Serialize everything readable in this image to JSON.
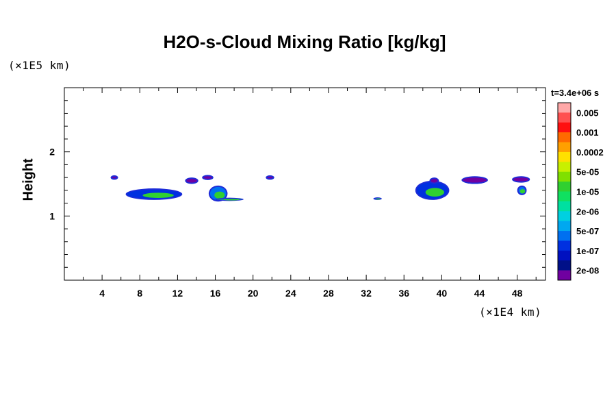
{
  "chart_data": {
    "type": "heatmap",
    "title": "H2O-s-Cloud Mixing Ratio [kg/kg]",
    "ylabel": "Height",
    "xlabel": "",
    "x_unit_label": "(×1E4 km)",
    "y_unit_label": "(×1E5 km)",
    "xlim": [
      0,
      51
    ],
    "ylim": [
      0,
      3
    ],
    "x_ticks": [
      "4",
      "8",
      "12",
      "16",
      "20",
      "24",
      "28",
      "32",
      "36",
      "40",
      "44",
      "48"
    ],
    "x_tick_values": [
      4,
      8,
      12,
      16,
      20,
      24,
      28,
      32,
      36,
      40,
      44,
      48
    ],
    "y_ticks": [
      "1",
      "2"
    ],
    "y_tick_values": [
      1,
      2
    ],
    "colorbar": {
      "title": "t=3.4e+06 s",
      "labels": [
        "0.005",
        "0.001",
        "0.0002",
        "5e-05",
        "1e-05",
        "2e-06",
        "5e-07",
        "1e-07",
        "2e-08"
      ],
      "colors": [
        "#ffa8a8",
        "#ff5050",
        "#ff1010",
        "#ff6a00",
        "#ffa000",
        "#ffe000",
        "#c8f000",
        "#80e000",
        "#30d030",
        "#10e060",
        "#00e0a0",
        "#00d0e0",
        "#00a8f0",
        "#0070f0",
        "#0030e0",
        "#0010c0",
        "#001088",
        "#7000a0"
      ]
    },
    "features": [
      {
        "x": 5.3,
        "y": 1.6,
        "w": 0.8,
        "h": 0.07,
        "level": "2e-08"
      },
      {
        "x": 9.5,
        "y": 1.34,
        "w": 6.0,
        "h": 0.18,
        "level": "5e-06"
      },
      {
        "x": 13.5,
        "y": 1.55,
        "w": 1.4,
        "h": 0.1,
        "level": "2e-08"
      },
      {
        "x": 15.2,
        "y": 1.6,
        "w": 1.2,
        "h": 0.08,
        "level": "2e-08"
      },
      {
        "x": 16.3,
        "y": 1.35,
        "w": 2.0,
        "h": 0.25,
        "level": "5e-07"
      },
      {
        "x": 17.5,
        "y": 1.26,
        "w": 3.0,
        "h": 0.05,
        "level": "1e-05"
      },
      {
        "x": 21.8,
        "y": 1.6,
        "w": 0.9,
        "h": 0.07,
        "level": "2e-08"
      },
      {
        "x": 33.2,
        "y": 1.27,
        "w": 0.9,
        "h": 0.04,
        "level": "5e-07"
      },
      {
        "x": 39.0,
        "y": 1.4,
        "w": 3.6,
        "h": 0.3,
        "level": "5e-06"
      },
      {
        "x": 39.2,
        "y": 1.55,
        "w": 1.0,
        "h": 0.1,
        "level": "2e-08"
      },
      {
        "x": 43.5,
        "y": 1.56,
        "w": 2.8,
        "h": 0.12,
        "level": "2e-08"
      },
      {
        "x": 48.4,
        "y": 1.57,
        "w": 1.9,
        "h": 0.1,
        "level": "2e-08"
      },
      {
        "x": 48.5,
        "y": 1.4,
        "w": 1.0,
        "h": 0.15,
        "level": "5e-07"
      }
    ]
  }
}
